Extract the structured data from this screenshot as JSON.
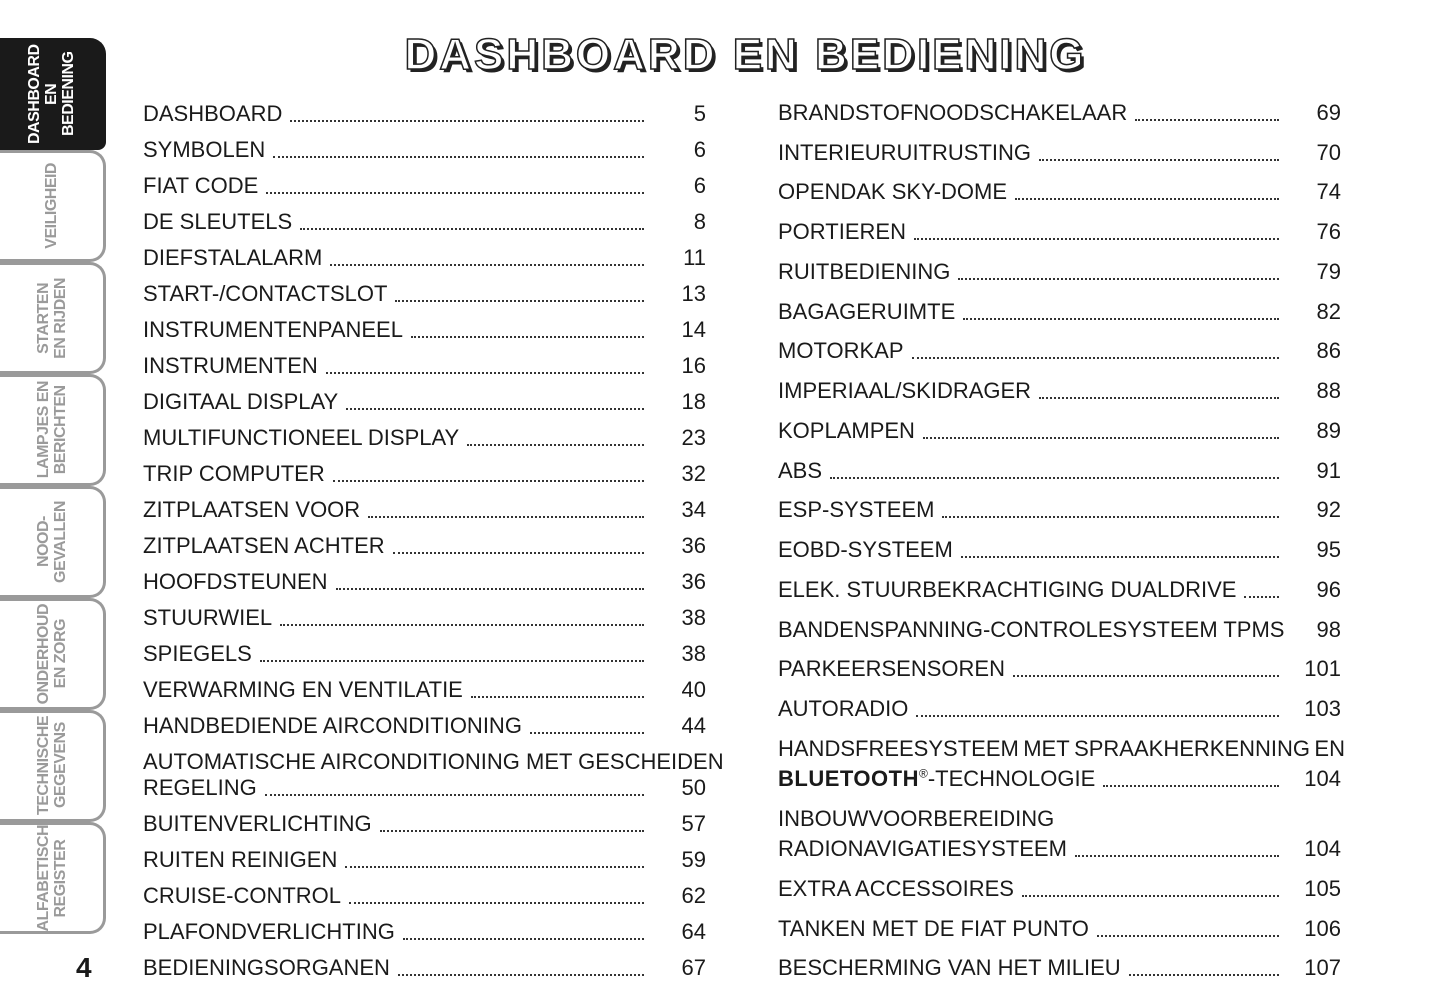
{
  "title": "DASHBOARD EN BEDIENING",
  "page_number": "4",
  "tabs": [
    {
      "label": "DASHBOARD\nEN BEDIENING",
      "active": true
    },
    {
      "label": "VEILIGHEID"
    },
    {
      "label": "STARTEN\nEN RIJDEN"
    },
    {
      "label": "LAMPJES EN\nBERICHTEN"
    },
    {
      "label": "NOOD-\nGEVALLEN"
    },
    {
      "label": "ONDERHOUD\nEN ZORG"
    },
    {
      "label": "TECHNISCHE\nGEGEVENS"
    },
    {
      "label": "ALFABETISCH\nREGISTER"
    }
  ],
  "left": [
    {
      "label": "DASHBOARD",
      "page": "5"
    },
    {
      "label": "SYMBOLEN",
      "page": "6"
    },
    {
      "label": "FIAT CODE",
      "page": "6"
    },
    {
      "label": "DE SLEUTELS",
      "page": "8"
    },
    {
      "label": "DIEFSTALALARM",
      "page": "11"
    },
    {
      "label": "START-/CONTACTSLOT",
      "page": "13"
    },
    {
      "label": "INSTRUMENTENPANEEL",
      "page": "14"
    },
    {
      "label": "INSTRUMENTEN",
      "page": "16"
    },
    {
      "label": "DIGITAAL DISPLAY",
      "page": "18"
    },
    {
      "label": "MULTIFUNCTIONEEL DISPLAY",
      "page": "23"
    },
    {
      "label": "TRIP COMPUTER",
      "page": "32"
    },
    {
      "label": "ZITPLAATSEN VOOR",
      "page": "34"
    },
    {
      "label": "ZITPLAATSEN ACHTER",
      "page": "36"
    },
    {
      "label": "HOOFDSTEUNEN",
      "page": "36"
    },
    {
      "label": "STUURWIEL",
      "page": "38"
    },
    {
      "label": "SPIEGELS",
      "page": "38"
    },
    {
      "label": "VERWARMING EN VENTILATIE",
      "page": "40"
    },
    {
      "label": "HANDBEDIENDE AIRCONDITIONING",
      "page": "44"
    },
    {
      "line1": "AUTOMATISCHE AIRCONDITIONING MET GESCHEIDEN",
      "label": "REGELING",
      "page": "50"
    },
    {
      "label": "BUITENVERLICHTING",
      "page": "57"
    },
    {
      "label": "RUITEN REINIGEN",
      "page": "59"
    },
    {
      "label": "CRUISE-CONTROL",
      "page": "62"
    },
    {
      "label": "PLAFONDVERLICHTING",
      "page": "64"
    },
    {
      "label": "BEDIENINGSORGANEN",
      "page": "67"
    }
  ],
  "right": [
    {
      "label": "BRANDSTOFNOODSCHAKELAAR",
      "page": "69"
    },
    {
      "label": "INTERIEURUITRUSTING",
      "page": "70"
    },
    {
      "label": "OPENDAK SKY-DOME",
      "page": "74"
    },
    {
      "label": "PORTIEREN",
      "page": "76"
    },
    {
      "label": "RUITBEDIENING",
      "page": "79"
    },
    {
      "label": "BAGAGERUIMTE",
      "page": "82"
    },
    {
      "label": "MOTORKAP",
      "page": "86"
    },
    {
      "label": "IMPERIAAL/SKIDRAGER",
      "page": "88"
    },
    {
      "label": "KOPLAMPEN",
      "page": "89"
    },
    {
      "label": "ABS",
      "page": "91"
    },
    {
      "label": "ESP-SYSTEEM",
      "page": "92"
    },
    {
      "label": "EOBD-SYSTEEM",
      "page": "95"
    },
    {
      "label": "ELEK. STUURBEKRACHTIGING DUALDRIVE",
      "page": "96"
    },
    {
      "label": "BANDENSPANNING-CONTROLESYSTEEM TPMS",
      "page": "98"
    },
    {
      "label": "PARKEERSENSOREN",
      "page": "101"
    },
    {
      "label": "AUTORADIO",
      "page": "103"
    },
    {
      "line1_words": [
        "HANDSFREESYSTEEM",
        "MET",
        "SPRAAKHERKENNING",
        "EN"
      ],
      "bold": "BLUETOOTH",
      "reg": "®",
      "label": "-TECHNOLOGIE",
      "page": "104"
    },
    {
      "line1": "INBOUWVOORBEREIDING",
      "label": "RADIONAVIGATIESYSTEEM",
      "page": "104"
    },
    {
      "label": "EXTRA ACCESSOIRES",
      "page": "105"
    },
    {
      "label": "TANKEN MET DE FIAT PUNTO",
      "page": "106"
    },
    {
      "label": "BESCHERMING VAN HET MILIEU",
      "page": "107"
    }
  ]
}
